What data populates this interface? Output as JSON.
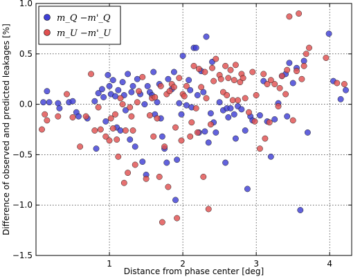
{
  "chart_data": {
    "type": "scatter",
    "xlabel": "Distance from phase center [deg]",
    "ylabel": "Difference of observed and predicted leakages [%]",
    "xlim": [
      0.0,
      4.3
    ],
    "ylim": [
      -1.5,
      1.0
    ],
    "xticks": [
      1,
      2,
      3,
      4
    ],
    "yticks": [
      -1.5,
      -1.0,
      -0.5,
      0.0,
      0.5,
      1.0
    ],
    "xtick_labels": [
      "1",
      "2",
      "3",
      "4"
    ],
    "ytick_labels": [
      "−1.5",
      "−1.0",
      "−0.5",
      "0.0",
      "0.5",
      "1.0"
    ],
    "grid": true,
    "legend_position": "top-left",
    "series": [
      {
        "name": "m_Q −m'_Q",
        "color": "#3f3fd6",
        "points": [
          [
            0.1,
            0.02
          ],
          [
            0.15,
            0.13
          ],
          [
            0.18,
            0.02
          ],
          [
            0.3,
            0.01
          ],
          [
            0.32,
            -0.04
          ],
          [
            0.45,
            0.02
          ],
          [
            0.5,
            0.03
          ],
          [
            0.55,
            -0.08
          ],
          [
            0.58,
            -0.12
          ],
          [
            0.7,
            -0.14
          ],
          [
            0.8,
            0.03
          ],
          [
            0.82,
            -0.44
          ],
          [
            0.85,
            0.11
          ],
          [
            0.9,
            0.15
          ],
          [
            0.92,
            0.07
          ],
          [
            0.95,
            -0.17
          ],
          [
            0.98,
            0.29
          ],
          [
            1.0,
            0.18
          ],
          [
            1.02,
            0.1
          ],
          [
            1.05,
            0.24
          ],
          [
            1.08,
            0.08
          ],
          [
            1.1,
            -0.23
          ],
          [
            1.12,
            0.14
          ],
          [
            1.15,
            -0.26
          ],
          [
            1.18,
            0.22
          ],
          [
            1.2,
            0.09
          ],
          [
            1.22,
            -0.06
          ],
          [
            1.25,
            0.3
          ],
          [
            1.28,
            -0.35
          ],
          [
            1.3,
            0.12
          ],
          [
            1.32,
            0.18
          ],
          [
            1.35,
            -0.42
          ],
          [
            1.38,
            0.25
          ],
          [
            1.42,
            0.1
          ],
          [
            1.45,
            -0.57
          ],
          [
            1.48,
            0.0
          ],
          [
            1.5,
            -0.7
          ],
          [
            1.52,
            0.18
          ],
          [
            1.55,
            0.12
          ],
          [
            1.58,
            0.09
          ],
          [
            1.6,
            0.32
          ],
          [
            1.62,
            -0.1
          ],
          [
            1.65,
            0.02
          ],
          [
            1.68,
            0.2
          ],
          [
            1.7,
            -0.14
          ],
          [
            1.72,
            -0.32
          ],
          [
            1.75,
            -0.44
          ],
          [
            1.78,
            -0.58
          ],
          [
            1.8,
            0.25
          ],
          [
            1.85,
            0.15
          ],
          [
            1.88,
            0.32
          ],
          [
            1.9,
            -0.95
          ],
          [
            1.92,
            -0.55
          ],
          [
            1.95,
            0.01
          ],
          [
            1.98,
            -0.1
          ],
          [
            2.0,
            0.48
          ],
          [
            2.05,
            -0.01
          ],
          [
            2.08,
            0.24
          ],
          [
            2.1,
            0.14
          ],
          [
            2.12,
            -0.03
          ],
          [
            2.15,
            0.56
          ],
          [
            2.18,
            0.56
          ],
          [
            2.2,
            0.09
          ],
          [
            2.22,
            -0.28
          ],
          [
            2.25,
            0.33
          ],
          [
            2.28,
            0.12
          ],
          [
            2.3,
            -0.27
          ],
          [
            2.32,
            0.67
          ],
          [
            2.35,
            -0.38
          ],
          [
            2.38,
            -0.09
          ],
          [
            2.4,
            0.42
          ],
          [
            2.42,
            -0.18
          ],
          [
            2.45,
            -0.28
          ],
          [
            2.5,
            0.02
          ],
          [
            2.55,
            -0.06
          ],
          [
            2.58,
            -0.58
          ],
          [
            2.6,
            -0.04
          ],
          [
            2.62,
            -0.13
          ],
          [
            2.65,
            -0.04
          ],
          [
            2.7,
            -0.1
          ],
          [
            2.72,
            -0.34
          ],
          [
            2.75,
            -0.02
          ],
          [
            2.8,
            -0.05
          ],
          [
            2.85,
            -0.26
          ],
          [
            2.88,
            -0.84
          ],
          [
            2.92,
            -0.12
          ],
          [
            2.95,
            -0.16
          ],
          [
            3.05,
            -0.11
          ],
          [
            3.1,
            0.23
          ],
          [
            3.15,
            -0.17
          ],
          [
            3.2,
            -0.52
          ],
          [
            3.25,
            -0.15
          ],
          [
            3.3,
            0.01
          ],
          [
            3.35,
            0.28
          ],
          [
            3.4,
            0.3
          ],
          [
            3.42,
            -0.12
          ],
          [
            3.45,
            0.41
          ],
          [
            3.5,
            0.21
          ],
          [
            3.55,
            0.36
          ],
          [
            3.6,
            -1.05
          ],
          [
            3.65,
            0.43
          ],
          [
            3.7,
            -0.28
          ],
          [
            3.99,
            0.7
          ],
          [
            4.05,
            0.23
          ],
          [
            4.15,
            0.05
          ],
          [
            4.22,
            0.14
          ]
        ]
      },
      {
        "name": "m_U −m'_U",
        "color": "#e05050",
        "points": [
          [
            0.08,
            -0.25
          ],
          [
            0.12,
            -0.1
          ],
          [
            0.15,
            -0.16
          ],
          [
            0.3,
            -0.12
          ],
          [
            0.42,
            0.1
          ],
          [
            0.5,
            -0.13
          ],
          [
            0.6,
            -0.42
          ],
          [
            0.68,
            -0.12
          ],
          [
            0.75,
            0.3
          ],
          [
            0.8,
            -0.26
          ],
          [
            0.85,
            -0.03
          ],
          [
            0.88,
            -0.25
          ],
          [
            0.95,
            -0.32
          ],
          [
            1.0,
            -0.36
          ],
          [
            1.02,
            -0.14
          ],
          [
            1.05,
            -0.24
          ],
          [
            1.08,
            -0.1
          ],
          [
            1.1,
            -0.35
          ],
          [
            1.12,
            -0.52
          ],
          [
            1.15,
            0.06
          ],
          [
            1.18,
            0.0
          ],
          [
            1.2,
            -0.78
          ],
          [
            1.22,
            -0.26
          ],
          [
            1.25,
            -0.68
          ],
          [
            1.28,
            -0.03
          ],
          [
            1.3,
            -0.12
          ],
          [
            1.32,
            -0.26
          ],
          [
            1.35,
            -0.6
          ],
          [
            1.38,
            0.02
          ],
          [
            1.4,
            0.13
          ],
          [
            1.45,
            0.27
          ],
          [
            1.5,
            -0.74
          ],
          [
            1.55,
            -0.11
          ],
          [
            1.58,
            0.06
          ],
          [
            1.6,
            -0.32
          ],
          [
            1.62,
            0.07
          ],
          [
            1.65,
            -0.14
          ],
          [
            1.68,
            -0.72
          ],
          [
            1.7,
            0.18
          ],
          [
            1.72,
            -1.17
          ],
          [
            1.75,
            -0.42
          ],
          [
            1.78,
            0.1
          ],
          [
            1.8,
            -0.82
          ],
          [
            1.82,
            0.13
          ],
          [
            1.85,
            0.2
          ],
          [
            1.88,
            0.17
          ],
          [
            1.9,
            -0.23
          ],
          [
            1.92,
            -1.13
          ],
          [
            1.95,
            0.26
          ],
          [
            1.98,
            -0.36
          ],
          [
            2.0,
            0.1
          ],
          [
            2.02,
            0.08
          ],
          [
            2.05,
            0.18
          ],
          [
            2.1,
            -0.32
          ],
          [
            2.12,
            -0.18
          ],
          [
            2.15,
            0.38
          ],
          [
            2.18,
            -0.04
          ],
          [
            2.2,
            -0.28
          ],
          [
            2.22,
            0.35
          ],
          [
            2.25,
            0.17
          ],
          [
            2.28,
            -0.72
          ],
          [
            2.3,
            0.32
          ],
          [
            2.32,
            0.06
          ],
          [
            2.35,
            -1.04
          ],
          [
            2.38,
            -0.2
          ],
          [
            2.4,
            0.36
          ],
          [
            2.42,
            0.23
          ],
          [
            2.45,
            0.45
          ],
          [
            2.5,
            0.29
          ],
          [
            2.52,
            0.25
          ],
          [
            2.55,
            0.12
          ],
          [
            2.58,
            0.38
          ],
          [
            2.6,
            0.09
          ],
          [
            2.62,
            0.26
          ],
          [
            2.65,
            0.34
          ],
          [
            2.68,
            0.04
          ],
          [
            2.7,
            0.24
          ],
          [
            2.72,
            0.39
          ],
          [
            2.75,
            0.04
          ],
          [
            2.78,
            0.22
          ],
          [
            2.8,
            0.3
          ],
          [
            2.82,
            0.26
          ],
          [
            2.85,
            0.06
          ],
          [
            2.9,
            -0.08
          ],
          [
            2.95,
            0.32
          ],
          [
            2.98,
            -0.17
          ],
          [
            3.0,
            0.09
          ],
          [
            3.05,
            -0.44
          ],
          [
            3.1,
            0.3
          ],
          [
            3.12,
            -0.34
          ],
          [
            3.15,
            0.2
          ],
          [
            3.18,
            -0.18
          ],
          [
            3.2,
            0.24
          ],
          [
            3.25,
            0.2
          ],
          [
            3.3,
            -0.02
          ],
          [
            3.32,
            0.16
          ],
          [
            3.35,
            0.28
          ],
          [
            3.4,
            0.1
          ],
          [
            3.42,
            0.34
          ],
          [
            3.45,
            0.87
          ],
          [
            3.5,
            -0.16
          ],
          [
            3.55,
            0.33
          ],
          [
            3.58,
            0.9
          ],
          [
            3.62,
            0.25
          ],
          [
            3.65,
            0.38
          ],
          [
            3.68,
            0.5
          ],
          [
            3.72,
            0.56
          ],
          [
            3.95,
            0.46
          ],
          [
            4.1,
            0.21
          ],
          [
            4.2,
            0.2
          ]
        ]
      }
    ]
  }
}
